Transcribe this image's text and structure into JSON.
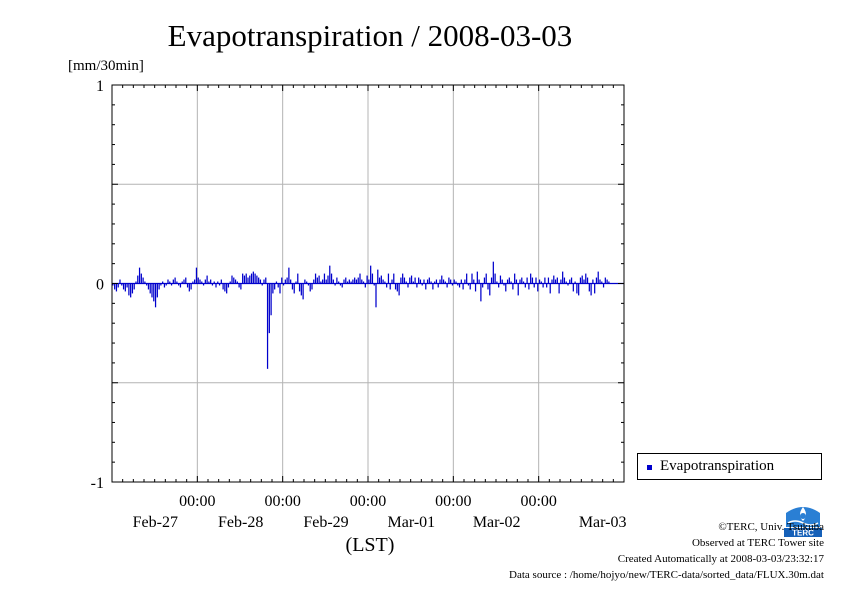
{
  "colors": {
    "series": "#0000cc",
    "grid": "#b4b4b4",
    "axis": "#000000"
  },
  "chart_data": {
    "type": "bar",
    "title": "Evapotranspiration / 2008-03-03",
    "ylabel": "[mm/30min]",
    "xlabel": "(LST)",
    "ylim": [
      -1,
      1
    ],
    "yticks": [
      {
        "value": 1,
        "label": "1"
      },
      {
        "value": 0,
        "label": "0"
      },
      {
        "value": -1,
        "label": "-1"
      }
    ],
    "ygrid": [
      -0.5,
      0.5
    ],
    "xlim_hours": [
      0,
      144
    ],
    "xticks": [
      {
        "hours": 24,
        "time": "00:00",
        "date": "Feb-27"
      },
      {
        "hours": 48,
        "time": "00:00",
        "date": "Feb-28"
      },
      {
        "hours": 72,
        "time": "00:00",
        "date": "Feb-29"
      },
      {
        "hours": 96,
        "time": "00:00",
        "date": "Mar-01"
      },
      {
        "hours": 120,
        "time": "00:00",
        "date": "Mar-02"
      }
    ],
    "xdate_extra": [
      {
        "hours": 138,
        "date": "Mar-03"
      }
    ],
    "grid": true,
    "legend_position": "right-bottom",
    "series": [
      {
        "name": "Evapotranspiration",
        "color": "#0000cc",
        "step_hours": 0.5,
        "values": [
          -0.01,
          -0.03,
          -0.04,
          -0.02,
          0.02,
          -0.01,
          -0.03,
          -0.04,
          -0.02,
          -0.06,
          -0.07,
          -0.05,
          -0.03,
          0.01,
          0.04,
          0.08,
          0.05,
          0.03,
          0.01,
          -0.01,
          -0.03,
          -0.05,
          -0.07,
          -0.09,
          -0.12,
          -0.07,
          -0.03,
          -0.01,
          0.01,
          -0.02,
          -0.01,
          0.02,
          0.01,
          -0.01,
          0.02,
          0.03,
          0.01,
          -0.01,
          -0.02,
          0.01,
          0.02,
          0.03,
          -0.02,
          -0.04,
          -0.03,
          0.01,
          0.02,
          0.08,
          0.03,
          0.02,
          0.01,
          -0.01,
          0.02,
          0.04,
          0.01,
          0.02,
          -0.01,
          0.01,
          -0.02,
          0.01,
          -0.01,
          0.02,
          -0.03,
          -0.04,
          -0.05,
          -0.02,
          0.01,
          0.04,
          0.03,
          0.02,
          0.01,
          -0.02,
          -0.03,
          0.05,
          0.04,
          0.05,
          0.03,
          0.04,
          0.05,
          0.06,
          0.05,
          0.04,
          0.03,
          0.02,
          -0.01,
          0.02,
          0.03,
          -0.43,
          -0.25,
          -0.16,
          -0.05,
          -0.03,
          0.01,
          -0.02,
          -0.05,
          0.03,
          -0.01,
          0.02,
          0.03,
          0.08,
          0.02,
          -0.03,
          -0.05,
          0.01,
          0.05,
          -0.04,
          -0.06,
          -0.08,
          0.02,
          0.01,
          -0.01,
          -0.04,
          -0.03,
          0.02,
          0.05,
          0.03,
          0.04,
          0.01,
          0.02,
          0.05,
          0.02,
          0.04,
          0.09,
          0.05,
          0.02,
          -0.01,
          0.03,
          0.01,
          -0.01,
          -0.02,
          0.02,
          0.03,
          0.01,
          0.02,
          0.01,
          0.02,
          0.03,
          0.02,
          0.03,
          0.05,
          0.02,
          0.01,
          -0.02,
          0.04,
          0.02,
          0.09,
          0.05,
          -0.01,
          -0.12,
          0.07,
          0.03,
          0.04,
          0.02,
          0.01,
          -0.02,
          0.05,
          -0.03,
          0.02,
          0.05,
          -0.03,
          -0.04,
          -0.06,
          0.03,
          0.05,
          0.03,
          0.01,
          -0.02,
          0.03,
          0.04,
          0.01,
          0.03,
          -0.02,
          0.03,
          0.02,
          -0.01,
          0.02,
          -0.03,
          0.02,
          0.03,
          0.01,
          -0.03,
          0.01,
          0.02,
          -0.02,
          0.02,
          0.04,
          0.02,
          0.01,
          -0.02,
          0.03,
          0.02,
          -0.01,
          0.02,
          0.01,
          -0.01,
          -0.02,
          0.02,
          -0.03,
          0.02,
          0.05,
          -0.01,
          -0.03,
          0.05,
          0.02,
          -0.04,
          0.06,
          0.02,
          -0.09,
          -0.02,
          0.03,
          0.05,
          -0.03,
          -0.06,
          0.03,
          0.11,
          0.05,
          0.01,
          -0.02,
          0.04,
          0.02,
          -0.01,
          -0.04,
          0.02,
          0.03,
          0.01,
          -0.03,
          0.05,
          0.02,
          -0.06,
          0.02,
          0.03,
          0.01,
          -0.02,
          0.03,
          -0.03,
          0.05,
          0.03,
          -0.02,
          0.03,
          -0.04,
          0.02,
          0.01,
          -0.02,
          0.03,
          -0.02,
          0.03,
          -0.05,
          0.02,
          0.04,
          0.02,
          0.03,
          -0.05,
          0.02,
          0.06,
          0.03,
          0.01,
          -0.01,
          0.02,
          0.03,
          -0.04,
          0.01,
          -0.05,
          -0.06,
          0.03,
          0.04,
          0.02,
          0.05,
          0.03,
          -0.04,
          -0.06,
          0.02,
          -0.05,
          0.03,
          0.06,
          0.02,
          0.01,
          -0.02,
          0.03,
          0.02,
          0.01
        ]
      }
    ]
  },
  "legend": {
    "label": "Evapotranspiration"
  },
  "credits": {
    "line1": "©TERC, Univ. Tsukuba",
    "line2": "Observed at TERC Tower site",
    "line3": "Created Automatically at 2008-03-03/23:32:17",
    "line4": "Data source : /home/hojyo/new/TERC-data/sorted_data/FLUX.30m.dat"
  },
  "logo": {
    "icon": "terc-logo-icon",
    "text": "TERC"
  }
}
